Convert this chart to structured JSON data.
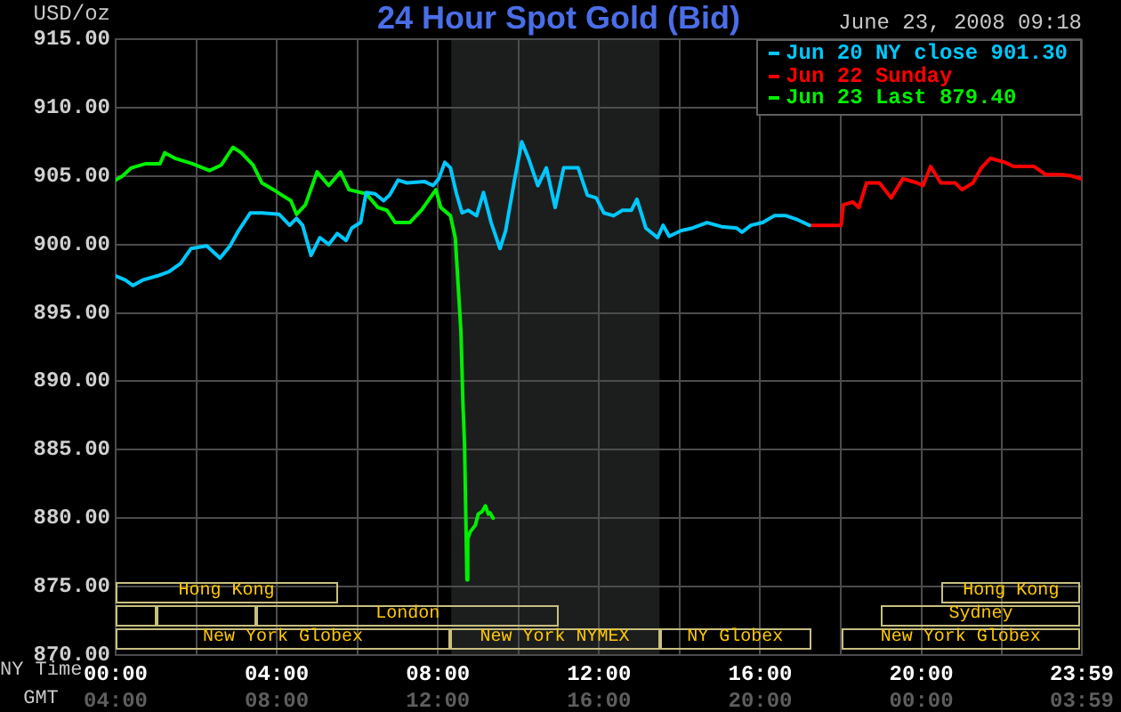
{
  "chart_data": {
    "type": "line",
    "title": "24 Hour Spot Gold (Bid)",
    "subtitle": "June 23, 2008 09:18",
    "ylabel": "USD/oz",
    "xlabel": "NY Time",
    "xlim": [
      0,
      23.983333
    ],
    "xticks": [
      {
        "value": 0,
        "label": "00:00"
      },
      {
        "value": 2,
        "label": null
      },
      {
        "value": 4,
        "label": "04:00"
      },
      {
        "value": 6,
        "label": null
      },
      {
        "value": 8,
        "label": "08:00"
      },
      {
        "value": 10,
        "label": null
      },
      {
        "value": 12,
        "label": "12:00"
      },
      {
        "value": 14,
        "label": null
      },
      {
        "value": 16,
        "label": "16:00"
      },
      {
        "value": 18,
        "label": null
      },
      {
        "value": 20,
        "label": "20:00"
      },
      {
        "value": 22,
        "label": null
      },
      {
        "value": 23.983333,
        "label": "23:59"
      }
    ],
    "ylim": [
      870,
      915
    ],
    "yticks": [
      {
        "value": 870,
        "label": "870.00"
      },
      {
        "value": 875,
        "label": "875.00"
      },
      {
        "value": 880,
        "label": "880.00"
      },
      {
        "value": 885,
        "label": "885.00"
      },
      {
        "value": 890,
        "label": "890.00"
      },
      {
        "value": 895,
        "label": "895.00"
      },
      {
        "value": 900,
        "label": "900.00"
      },
      {
        "value": 905,
        "label": "905.00"
      },
      {
        "value": 910,
        "label": "910.00"
      },
      {
        "value": 915,
        "label": "915.00"
      }
    ],
    "grid": true,
    "legend": "top right",
    "bands": [
      {
        "axis": "x",
        "from": 8.33,
        "to": 13.5,
        "color": "#1c1e1e"
      }
    ],
    "annotations": [
      "Hong Kong",
      "Hong Kong",
      "London",
      "Sydney",
      "New York Globex",
      "New York NYMEX",
      "NY Globex",
      "New York Globex",
      "GMT",
      "04:00",
      "08:00",
      "12:00",
      "16:00",
      "20:00",
      "00:00",
      "03:59"
    ],
    "series": [
      {
        "name": "Jun 20 NY close 901.30",
        "color": "#00c8ff",
        "x": [
          0,
          0.24,
          0.43,
          0.67,
          1.03,
          1.32,
          1.61,
          1.87,
          2.26,
          2.59,
          2.84,
          3.05,
          3.34,
          3.63,
          4.06,
          4.32,
          4.49,
          4.64,
          4.85,
          5.07,
          5.29,
          5.5,
          5.72,
          5.86,
          6.08,
          6.22,
          6.44,
          6.65,
          6.8,
          7.01,
          7.23,
          7.66,
          7.88,
          8.02,
          8.17,
          8.31,
          8.46,
          8.6,
          8.75,
          8.96,
          9.13,
          9.32,
          9.54,
          9.68,
          9.9,
          10.08,
          10.26,
          10.48,
          10.69,
          10.91,
          11.12,
          11.48,
          11.71,
          11.93,
          12.12,
          12.36,
          12.58,
          12.8,
          12.94,
          13.16,
          13.45,
          13.59,
          13.74,
          14.03,
          14.32,
          14.68,
          15.04,
          15.41,
          15.55,
          15.77,
          16.06,
          16.35,
          16.64,
          16.93,
          17.22
        ],
        "values": [
          897.7,
          897.4,
          897.0,
          897.4,
          897.7,
          898.0,
          898.6,
          899.7,
          899.9,
          899.0,
          899.9,
          901.0,
          902.3,
          902.3,
          902.2,
          901.4,
          901.9,
          901.4,
          899.2,
          900.5,
          900.0,
          900.8,
          900.3,
          901.2,
          901.6,
          903.8,
          903.7,
          903.2,
          903.6,
          904.7,
          904.5,
          904.6,
          904.3,
          904.8,
          906.0,
          905.6,
          903.7,
          902.3,
          902.5,
          902.1,
          903.8,
          901.6,
          899.7,
          901.0,
          904.7,
          907.5,
          906.2,
          904.3,
          905.6,
          902.7,
          905.6,
          905.6,
          903.6,
          903.4,
          902.3,
          902.1,
          902.5,
          902.5,
          903.3,
          901.2,
          900.5,
          901.4,
          900.6,
          901.0,
          901.2,
          901.6,
          901.3,
          901.2,
          900.9,
          901.4,
          901.6,
          902.1,
          902.1,
          901.8,
          901.4
        ]
      },
      {
        "name": "Jun 22 Sunday",
        "color": "#ff0000",
        "x": [
          17.22,
          18.01,
          18.06,
          18.3,
          18.45,
          18.64,
          18.96,
          19.25,
          19.54,
          19.9,
          20.04,
          20.23,
          20.48,
          20.84,
          21.01,
          21.28,
          21.49,
          21.71,
          22.07,
          22.29,
          22.8,
          23.09,
          23.52,
          23.74,
          23.96
        ],
        "values": [
          901.4,
          901.4,
          902.9,
          903.1,
          902.7,
          904.5,
          904.5,
          903.4,
          904.8,
          904.5,
          904.3,
          905.7,
          904.5,
          904.5,
          904.0,
          904.5,
          905.6,
          906.3,
          906.0,
          905.7,
          905.7,
          905.1,
          905.1,
          905.0,
          904.8
        ]
      },
      {
        "name": "Jun 23 Last 879.40",
        "color": "#00f000",
        "x": [
          0,
          0.17,
          0.39,
          0.75,
          1.1,
          1.22,
          1.47,
          1.9,
          2.33,
          2.62,
          2.91,
          3.12,
          3.41,
          3.63,
          3.92,
          4.13,
          4.35,
          4.49,
          4.71,
          5.0,
          5.29,
          5.58,
          5.79,
          6.22,
          6.51,
          6.73,
          6.94,
          7.3,
          7.59,
          7.95,
          8.07,
          8.31,
          8.43,
          8.57,
          8.62,
          8.66,
          8.72,
          8.74,
          8.8,
          8.93,
          9.0,
          9.1,
          9.18,
          9.25,
          9.29,
          9.37
        ],
        "values": [
          904.7,
          905.0,
          905.6,
          905.9,
          905.9,
          906.7,
          906.3,
          905.9,
          905.4,
          905.8,
          907.1,
          906.7,
          905.8,
          904.5,
          904.0,
          903.6,
          903.2,
          902.2,
          902.9,
          905.3,
          904.3,
          905.3,
          904.0,
          903.7,
          902.7,
          902.5,
          901.6,
          901.6,
          902.5,
          904.0,
          902.7,
          902.1,
          900.5,
          893.7,
          888.4,
          885.4,
          875.5,
          878.5,
          879.0,
          879.5,
          880.3,
          880.5,
          880.9,
          880.3,
          880.4,
          880.0
        ]
      }
    ]
  }
}
